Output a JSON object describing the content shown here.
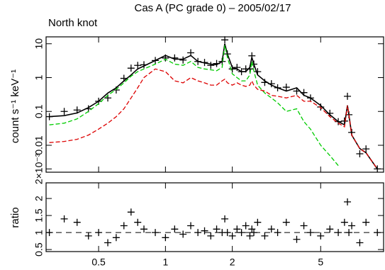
{
  "chart_data": [
    {
      "type": "line",
      "title": "Cas A (PC grade 0) – 2005/02/17",
      "subtitle": "North knot",
      "ylabel": "count s⁻¹ keV⁻¹",
      "xlog": true,
      "ylog": true,
      "xlim": [
        0.29,
        9.6
      ],
      "ylim": [
        0.0016,
        16
      ],
      "yticks": [
        {
          "value": 0.002,
          "label": "2×10⁻³"
        },
        0.01,
        0.1,
        1,
        10
      ],
      "x": [
        0.3,
        0.35,
        0.4,
        0.45,
        0.5,
        0.55,
        0.6,
        0.65,
        0.7,
        0.75,
        0.8,
        0.9,
        1.0,
        1.1,
        1.2,
        1.3,
        1.4,
        1.5,
        1.6,
        1.7,
        1.8,
        1.85,
        1.9,
        2.0,
        2.1,
        2.2,
        2.3,
        2.4,
        2.45,
        2.5,
        2.6,
        2.8,
        3.0,
        3.2,
        3.5,
        3.9,
        4.2,
        4.5,
        5.0,
        5.5,
        6.0,
        6.4,
        6.6,
        6.7,
        6.9,
        7.5,
        8.0,
        9.0
      ],
      "series": [
        {
          "style": "crosses",
          "color": "#000000",
          "values": [
            0.07,
            0.1,
            0.11,
            0.12,
            0.2,
            0.25,
            0.43,
            0.95,
            1.9,
            2.3,
            2.4,
            3.2,
            3.8,
            3.8,
            3.3,
            5.4,
            3.0,
            2.8,
            2.3,
            2.6,
            3.0,
            13,
            5,
            1.8,
            2.0,
            1.5,
            1.8,
            1.8,
            4.4,
            2.5,
            1.5,
            0.72,
            0.66,
            0.5,
            0.52,
            0.4,
            0.36,
            0.25,
            0.135,
            0.088,
            0.05,
            0.052,
            0.28,
            0.08,
            0.024,
            0.0056,
            0.0078,
            0.002
          ]
        },
        {
          "style": "line",
          "color": "#000000",
          "values": [
            0.07,
            0.075,
            0.09,
            0.13,
            0.2,
            0.35,
            0.5,
            0.8,
            1.2,
            1.8,
            2.2,
            3.2,
            4.5,
            3.5,
            3.5,
            4.5,
            3.0,
            2.7,
            2.5,
            2.4,
            3.0,
            10,
            5,
            2.0,
            1.8,
            1.5,
            1.5,
            2.0,
            4.0,
            2.5,
            1.2,
            0.8,
            0.6,
            0.5,
            0.4,
            0.5,
            0.3,
            0.25,
            0.15,
            0.08,
            0.05,
            0.04,
            0.15,
            0.08,
            0.02,
            0.008,
            0.006,
            0.002
          ]
        },
        {
          "style": "dashed",
          "color": "#00cc00",
          "values": [
            0.04,
            0.045,
            0.06,
            0.1,
            0.17,
            0.3,
            0.45,
            0.7,
            1.1,
            1.5,
            1.8,
            2.5,
            3.5,
            2.5,
            2.3,
            3.0,
            2.0,
            1.8,
            1.7,
            1.6,
            2.0,
            9,
            4,
            1.3,
            1.0,
            0.8,
            0.8,
            1.2,
            3,
            1.6,
            0.6,
            0.35,
            0.25,
            0.18,
            0.1,
            0.12,
            0.05,
            0.03,
            0.01,
            0.005,
            0.0025,
            null,
            null,
            null,
            null,
            null,
            null,
            null
          ]
        },
        {
          "style": "dashed",
          "color": "#dd0000",
          "values": [
            0.012,
            0.013,
            0.015,
            0.02,
            0.03,
            0.045,
            0.07,
            0.12,
            0.25,
            0.5,
            1.0,
            1.8,
            1.5,
            0.8,
            0.7,
            1.0,
            0.8,
            0.7,
            0.6,
            0.6,
            0.8,
            0.9,
            0.7,
            0.6,
            0.7,
            0.6,
            0.55,
            0.6,
            0.8,
            0.6,
            0.45,
            0.4,
            0.3,
            0.28,
            0.25,
            0.3,
            0.2,
            0.2,
            0.13,
            0.07,
            0.045,
            0.035,
            0.15,
            0.08,
            0.02,
            0.008,
            0.006,
            0.002
          ]
        }
      ]
    },
    {
      "type": "scatter",
      "ylabel": "ratio",
      "xlog": true,
      "xlim": [
        0.29,
        9.6
      ],
      "ylim": [
        0.44,
        2.46
      ],
      "yticks": [
        0.5,
        1,
        1.5,
        2
      ],
      "xticks": [
        0.5,
        1,
        2,
        5
      ],
      "ref_line": 1,
      "series": [
        {
          "style": "crosses",
          "color": "#000000",
          "values": [
            1.0,
            1.4,
            1.3,
            0.9,
            1.0,
            0.7,
            0.85,
            1.2,
            1.6,
            1.3,
            1.1,
            1.0,
            0.85,
            1.1,
            0.95,
            1.2,
            1.0,
            1.05,
            0.9,
            1.1,
            1.0,
            1.4,
            1.0,
            0.9,
            1.1,
            1.0,
            1.2,
            0.9,
            1.1,
            1.0,
            1.3,
            0.9,
            1.1,
            1.0,
            1.3,
            0.8,
            1.2,
            1.0,
            0.9,
            1.1,
            1.0,
            1.3,
            1.9,
            1.0,
            1.2,
            0.7,
            1.3,
            1.0
          ]
        }
      ]
    }
  ]
}
